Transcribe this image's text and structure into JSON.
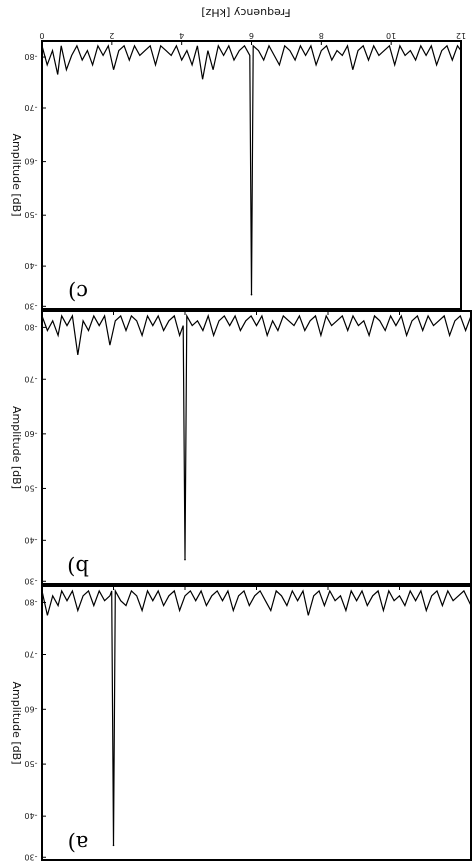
{
  "chart_data": [
    {
      "type": "line",
      "panel_label": "c)",
      "xlabel": "Frequency [kHz]",
      "ylabel": "Amplitude [dB]",
      "x_ticks": [
        "0",
        "2",
        "4",
        "6",
        "8",
        "10",
        "12"
      ],
      "y_ticks": [
        "-80",
        "-70",
        "-60",
        "-50",
        "-40",
        "-30"
      ],
      "xlim": [
        0,
        12
      ],
      "ylim": [
        -25,
        -81
      ],
      "peak": {
        "x": 6.0,
        "y": -28
      },
      "series": [
        {
          "x": [
            0.0,
            0.15,
            0.3,
            0.45,
            0.55,
            0.7,
            0.85,
            1.0,
            1.15,
            1.3,
            1.45,
            1.6,
            1.75,
            1.9,
            2.05,
            2.2,
            2.35,
            2.5,
            2.65,
            2.8,
            2.95,
            3.1,
            3.25,
            3.4,
            3.55,
            3.7,
            3.85,
            4.0,
            4.15,
            4.3,
            4.45,
            4.6,
            4.75,
            4.9,
            5.05,
            5.2,
            5.35,
            5.5,
            5.65,
            5.8,
            5.95,
            6.0,
            6.05,
            6.2,
            6.35,
            6.5,
            6.65,
            6.8,
            6.95,
            7.1,
            7.25,
            7.4,
            7.55,
            7.7,
            7.85,
            8.0,
            8.15,
            8.3,
            8.45,
            8.6,
            8.75,
            8.9,
            9.05,
            9.2,
            9.35,
            9.5,
            9.65,
            9.8,
            9.95,
            10.1,
            10.25,
            10.4,
            10.55,
            10.7,
            10.85,
            11.0,
            11.15,
            11.3,
            11.45,
            11.6,
            11.75,
            11.9,
            12.0
          ],
          "y": [
            -80,
            -76,
            -79,
            -74,
            -80,
            -75,
            -78,
            -80,
            -77,
            -79,
            -76,
            -80,
            -78,
            -80,
            -75,
            -79,
            -80,
            -77,
            -80,
            -78,
            -79,
            -80,
            -76,
            -80,
            -79,
            -78,
            -80,
            -77,
            -79,
            -76,
            -80,
            -73,
            -79,
            -75,
            -80,
            -78,
            -80,
            -77,
            -79,
            -80,
            -78,
            -28,
            -80,
            -79,
            -77,
            -80,
            -78,
            -76,
            -80,
            -79,
            -77,
            -80,
            -78,
            -80,
            -76,
            -79,
            -80,
            -77,
            -79,
            -78,
            -80,
            -75,
            -79,
            -80,
            -77,
            -80,
            -78,
            -79,
            -80,
            -76,
            -80,
            -78,
            -79,
            -77,
            -80,
            -78,
            -80,
            -76,
            -79,
            -80,
            -77,
            -80,
            -79
          ]
        }
      ]
    },
    {
      "type": "line",
      "panel_label": "b)",
      "xlabel": "",
      "ylabel": "Amplitude [dB]",
      "x_ticks": [],
      "y_ticks": [
        "-80",
        "-70",
        "-60",
        "-50",
        "-40",
        "-30"
      ],
      "xlim": [
        0,
        12
      ],
      "ylim": [
        -25,
        -81
      ],
      "peak": {
        "x": 4.0,
        "y": -30
      },
      "series": [
        {
          "x": [
            0.0,
            0.15,
            0.3,
            0.45,
            0.55,
            0.7,
            0.85,
            1.0,
            1.15,
            1.3,
            1.45,
            1.6,
            1.75,
            1.9,
            2.05,
            2.2,
            2.35,
            2.5,
            2.65,
            2.8,
            2.95,
            3.1,
            3.25,
            3.4,
            3.55,
            3.7,
            3.85,
            3.95,
            4.0,
            4.05,
            4.2,
            4.35,
            4.5,
            4.65,
            4.8,
            4.95,
            5.1,
            5.25,
            5.4,
            5.55,
            5.7,
            5.85,
            6.0,
            6.15,
            6.3,
            6.45,
            6.6,
            6.75,
            6.9,
            7.05,
            7.2,
            7.35,
            7.5,
            7.65,
            7.8,
            7.95,
            8.1,
            8.25,
            8.4,
            8.55,
            8.7,
            8.85,
            9.0,
            9.15,
            9.3,
            9.45,
            9.6,
            9.75,
            9.9,
            10.05,
            10.2,
            10.35,
            10.5,
            10.65,
            10.8,
            10.95,
            11.1,
            11.25,
            11.4,
            11.55,
            11.7,
            11.85,
            12.0
          ],
          "y": [
            -80,
            -77,
            -79,
            -76,
            -80,
            -78,
            -80,
            -72,
            -79,
            -77,
            -80,
            -78,
            -80,
            -74,
            -79,
            -80,
            -77,
            -80,
            -79,
            -76,
            -80,
            -78,
            -80,
            -77,
            -79,
            -80,
            -76,
            -78,
            -30,
            -80,
            -78,
            -79,
            -77,
            -80,
            -76,
            -79,
            -80,
            -78,
            -80,
            -77,
            -79,
            -80,
            -78,
            -80,
            -76,
            -79,
            -77,
            -80,
            -79,
            -78,
            -80,
            -77,
            -79,
            -80,
            -76,
            -80,
            -78,
            -79,
            -80,
            -77,
            -80,
            -78,
            -79,
            -76,
            -80,
            -79,
            -77,
            -80,
            -78,
            -80,
            -76,
            -79,
            -80,
            -77,
            -80,
            -78,
            -79,
            -80,
            -76,
            -79,
            -80,
            -77,
            -80
          ]
        }
      ]
    },
    {
      "type": "line",
      "panel_label": "a)",
      "xlabel": "",
      "ylabel": "Amplitude [dB]",
      "x_ticks": [],
      "y_ticks": [
        "-80",
        "-70",
        "-60",
        "-50",
        "-40",
        "-30"
      ],
      "xlim": [
        0,
        12
      ],
      "ylim": [
        -25,
        -81
      ],
      "peak": {
        "x": 2.0,
        "y": -28
      },
      "series": [
        {
          "x": [
            0.0,
            0.15,
            0.3,
            0.45,
            0.55,
            0.7,
            0.85,
            1.0,
            1.15,
            1.3,
            1.45,
            1.6,
            1.75,
            1.9,
            1.95,
            2.0,
            2.05,
            2.2,
            2.35,
            2.5,
            2.65,
            2.8,
            2.95,
            3.1,
            3.25,
            3.4,
            3.55,
            3.7,
            3.85,
            4.0,
            4.15,
            4.3,
            4.45,
            4.6,
            4.75,
            4.9,
            5.05,
            5.2,
            5.35,
            5.5,
            5.65,
            5.8,
            5.95,
            6.1,
            6.25,
            6.4,
            6.55,
            6.7,
            6.85,
            7.0,
            7.15,
            7.3,
            7.45,
            7.6,
            7.75,
            7.9,
            8.05,
            8.2,
            8.35,
            8.5,
            8.65,
            8.8,
            8.95,
            9.1,
            9.25,
            9.4,
            9.55,
            9.7,
            9.85,
            10.0,
            10.15,
            10.3,
            10.45,
            10.6,
            10.75,
            10.9,
            11.05,
            11.2,
            11.35,
            11.5,
            11.65,
            11.8,
            12.0
          ],
          "y": [
            -80,
            -75,
            -79,
            -77,
            -80,
            -78,
            -80,
            -76,
            -79,
            -80,
            -77,
            -80,
            -78,
            -79,
            -80,
            -28,
            -80,
            -78,
            -77,
            -80,
            -79,
            -76,
            -80,
            -78,
            -80,
            -77,
            -79,
            -80,
            -76,
            -79,
            -80,
            -78,
            -80,
            -77,
            -79,
            -80,
            -78,
            -80,
            -76,
            -79,
            -80,
            -77,
            -79,
            -80,
            -78,
            -76,
            -80,
            -79,
            -77,
            -80,
            -78,
            -80,
            -75,
            -79,
            -80,
            -77,
            -80,
            -78,
            -79,
            -76,
            -80,
            -78,
            -80,
            -77,
            -79,
            -80,
            -76,
            -80,
            -78,
            -79,
            -77,
            -80,
            -78,
            -80,
            -76,
            -79,
            -80,
            -77,
            -80,
            -78,
            -79,
            -80,
            -77
          ]
        }
      ]
    }
  ]
}
